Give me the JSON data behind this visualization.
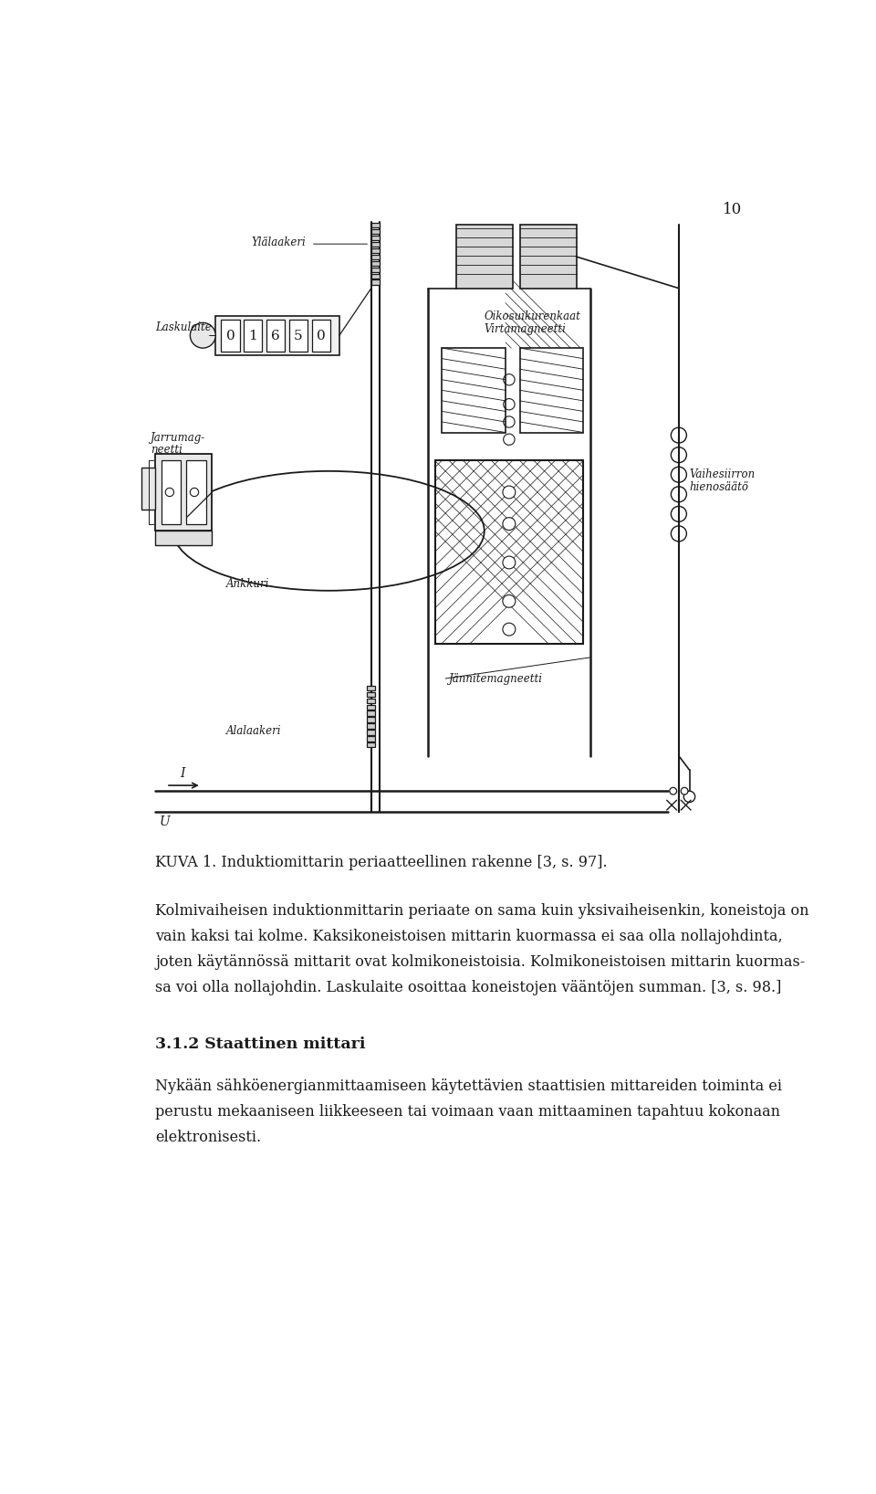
{
  "page_number": "10",
  "background_color": "#ffffff",
  "text_color": "#1a1a1a",
  "page_width": 9.6,
  "page_height": 16.36,
  "figure_caption": "KUVA 1. Induktiomittarin periaatteellinen rakenne [3, s. 97].",
  "paragraph1_line1": "Kolmivaiheisen induktionmittarin periaate on sama kuin yksivaiheisenkin, koneistoja on",
  "paragraph1_line2": "vain kaksi tai kolme. Kaksikoneistoisen mittarin kuormassa ei saa olla nollajohdinta,",
  "paragraph1_line3": "joten käytännössä mittarit ovat kolmikoneistoisia. Kolmikoneistoisen mittarin kuormas-",
  "paragraph1_line4": "sa voi olla nollajohdin. Laskulaite osoittaa koneistojen vääntöjen summan. [3, s. 98.]",
  "section_heading": "3.1.2 Staattinen mittari",
  "paragraph2_line1": "Nykään sähköenergianmittaamiseen käytettävien staattisien mittareiden toiminta ei",
  "paragraph2_line2": "perustu mekaaniseen liikkeeseen tai voimaan vaan mittaaminen tapahtuu kokonaan",
  "paragraph2_line3": "elektronisesti.",
  "font_size_body": 11.5,
  "font_size_caption": 11.5,
  "font_size_heading": 12.5,
  "font_size_page_num": 12,
  "font_size_label": 8.5
}
